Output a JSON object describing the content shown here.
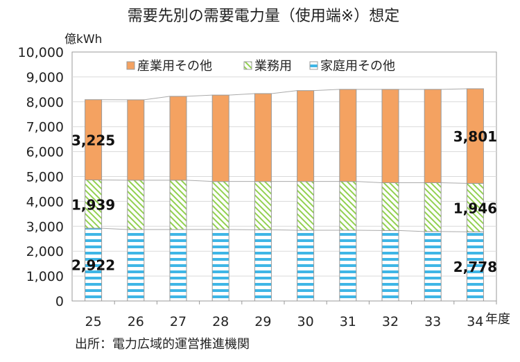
{
  "chart_data": {
    "type": "bar",
    "stacked": true,
    "title": "需要先別の需要電力量（使用端※）想定",
    "ylabel": "億kWh",
    "xlabel": "年度",
    "ylim": [
      0,
      10000
    ],
    "yticks": [
      "0",
      "1,000",
      "2,000",
      "3,000",
      "4,000",
      "5,000",
      "6,000",
      "7,000",
      "8,000",
      "9,000",
      "10,000"
    ],
    "grid": true,
    "legend_position": "top",
    "categories": [
      "25",
      "26",
      "27",
      "28",
      "29",
      "30",
      "31",
      "32",
      "33",
      "34"
    ],
    "series": [
      {
        "name": "家庭用その他",
        "color": "#3fb6e6",
        "pattern": "horizontal-stripes",
        "values": [
          2922,
          2870,
          2870,
          2870,
          2860,
          2840,
          2840,
          2830,
          2790,
          2778
        ]
      },
      {
        "name": "業務用",
        "color": "#92d050",
        "pattern": "diagonal-hatch",
        "values": [
          1939,
          1980,
          1980,
          1930,
          1940,
          1960,
          1960,
          1920,
          1960,
          1946
        ]
      },
      {
        "name": "産業用その他",
        "color": "#f4a261",
        "pattern": "solid",
        "values": [
          3225,
          3230,
          3370,
          3470,
          3530,
          3650,
          3700,
          3750,
          3750,
          3801
        ]
      }
    ],
    "data_labels": [
      {
        "category": "25",
        "series": "産業用その他",
        "text": "3,225"
      },
      {
        "category": "25",
        "series": "業務用",
        "text": "1,939"
      },
      {
        "category": "25",
        "series": "家庭用その他",
        "text": "2,922"
      },
      {
        "category": "34",
        "series": "産業用その他",
        "text": "3,801"
      },
      {
        "category": "34",
        "series": "業務用",
        "text": "1,946"
      },
      {
        "category": "34",
        "series": "家庭用その他",
        "text": "2,778"
      }
    ],
    "source": "出所：電力広域的運営推進機関"
  }
}
